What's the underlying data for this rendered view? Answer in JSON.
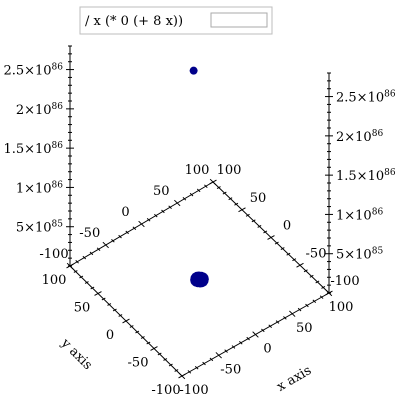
{
  "chart_data": {
    "type": "scatter",
    "projection": "3d",
    "title": "",
    "legend": {
      "placement": "top",
      "entries": [
        {
          "label": "/ x (* 0 (+ 8 x))",
          "color": "#00008b"
        }
      ]
    },
    "axes": {
      "x": {
        "label": "x axis",
        "range": [
          -100,
          100
        ],
        "ticks": [
          -100,
          -50,
          0,
          50,
          100
        ],
        "tick_labels": [
          "-100",
          "-50",
          "0",
          "50",
          "100"
        ]
      },
      "y": {
        "label": "y axis",
        "range": [
          -100,
          100
        ],
        "ticks": [
          -100,
          -50,
          0,
          50,
          100
        ],
        "tick_labels": [
          "-100",
          "-50",
          "0",
          "50",
          "100"
        ]
      },
      "z": {
        "range": [
          0,
          2.8e+86
        ],
        "ticks": [
          5e+85,
          1e+86,
          1.5e+86,
          2e+86,
          2.5e+86
        ],
        "tick_mantissas": [
          "5",
          "1",
          "1.5",
          "2",
          "2.5"
        ],
        "tick_exponents": [
          "85",
          "86",
          "86",
          "86",
          "86"
        ]
      }
    },
    "grid": false,
    "series": [
      {
        "name": "/ x (* 0 (+ 8 x))",
        "color": "#00008b",
        "points": [
          {
            "x": -6,
            "y": 1,
            "z": 0
          },
          {
            "x": -5,
            "y": 3,
            "z": 0
          },
          {
            "x": -3,
            "y": 5,
            "z": 0
          },
          {
            "x": -1,
            "y": 6,
            "z": 0
          },
          {
            "x": 1,
            "y": 6,
            "z": 0
          },
          {
            "x": 3,
            "y": 5,
            "z": 0
          },
          {
            "x": 5,
            "y": 3,
            "z": 0
          },
          {
            "x": 6,
            "y": 1,
            "z": 0
          },
          {
            "x": 6,
            "y": -1,
            "z": 0
          },
          {
            "x": 5,
            "y": -3,
            "z": 0
          },
          {
            "x": 3,
            "y": -5,
            "z": 0
          },
          {
            "x": 1,
            "y": -6,
            "z": 0
          },
          {
            "x": -1,
            "y": -6,
            "z": 0
          },
          {
            "x": -3,
            "y": -5,
            "z": 0
          },
          {
            "x": -5,
            "y": -3,
            "z": 0
          },
          {
            "x": -6,
            "y": -1,
            "z": 0
          },
          {
            "x": -2,
            "y": 2,
            "z": 0
          },
          {
            "x": 2,
            "y": 2,
            "z": 0
          },
          {
            "x": 2,
            "y": -2,
            "z": 0
          },
          {
            "x": -2,
            "y": -2,
            "z": 0
          },
          {
            "x": 0,
            "y": 0,
            "z": 0
          },
          {
            "x": -8,
            "y": 0,
            "z": 2.7e+86
          }
        ]
      }
    ]
  }
}
